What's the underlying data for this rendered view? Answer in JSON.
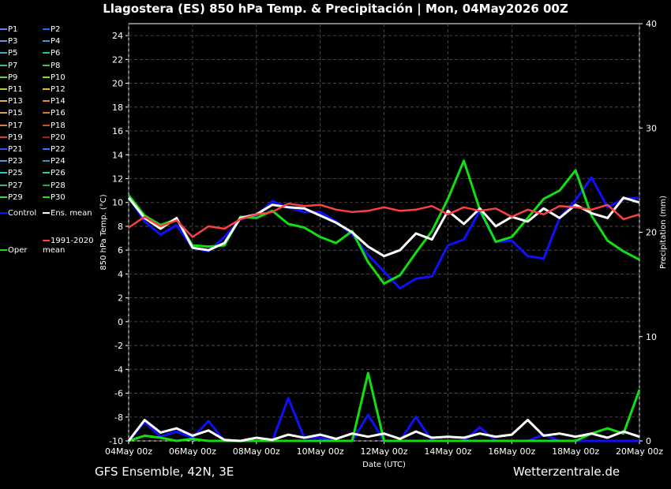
{
  "title": "Llagostera  (ES)  850 hPa Temp. & Precipitación | Mon, 04May2026 00Z",
  "footer_left": "GFS Ensemble, 42N, 3E",
  "footer_right": "Wetterzentrale.de",
  "chart_data": {
    "type": "line",
    "xlabel": "Date (UTC)",
    "ylabel": "850 hPa Temp. (°C)",
    "y2label": "Precipitation (mm)",
    "x_ticks": [
      "04May 00z",
      "06May 00z",
      "08May 00z",
      "10May 00z",
      "12May 00z",
      "14May 00z",
      "16May 00z",
      "18May 00z",
      "20May 00z"
    ],
    "xlim_hours": [
      0,
      384
    ],
    "ylim": [
      -10,
      25
    ],
    "y_ticks": [
      -10,
      -8,
      -6,
      -4,
      -2,
      0,
      2,
      4,
      6,
      8,
      10,
      12,
      14,
      16,
      18,
      20,
      22,
      24
    ],
    "y2lim": [
      0,
      40
    ],
    "y2_ticks": [
      0,
      10,
      20,
      30,
      40
    ],
    "grid": true,
    "legend_position": "left",
    "legend": [
      {
        "label": "P1",
        "color": "#5b7cff"
      },
      {
        "label": "P2",
        "color": "#2266ff"
      },
      {
        "label": "P3",
        "color": "#6f8fd8"
      },
      {
        "label": "P4",
        "color": "#3aa0d0"
      },
      {
        "label": "P5",
        "color": "#30b0c8"
      },
      {
        "label": "P6",
        "color": "#20c0a0"
      },
      {
        "label": "P7",
        "color": "#30c090"
      },
      {
        "label": "P8",
        "color": "#40c060"
      },
      {
        "label": "P9",
        "color": "#60d040"
      },
      {
        "label": "P10",
        "color": "#88d820"
      },
      {
        "label": "P11",
        "color": "#b8d030"
      },
      {
        "label": "P12",
        "color": "#d8c030"
      },
      {
        "label": "P13",
        "color": "#e0b040"
      },
      {
        "label": "P14",
        "color": "#e09030"
      },
      {
        "label": "P15",
        "color": "#d8a060"
      },
      {
        "label": "P16",
        "color": "#c08040"
      },
      {
        "label": "P17",
        "color": "#e07850"
      },
      {
        "label": "P18",
        "color": "#c85030"
      },
      {
        "label": "P19",
        "color": "#d04040"
      },
      {
        "label": "P20",
        "color": "#a02020"
      },
      {
        "label": "P21",
        "color": "#3050ff"
      },
      {
        "label": "P22",
        "color": "#2a80ff"
      },
      {
        "label": "P23",
        "color": "#4a9ae0"
      },
      {
        "label": "P24",
        "color": "#2a9ec0"
      },
      {
        "label": "P25",
        "color": "#28c8c8"
      },
      {
        "label": "P26",
        "color": "#30c8a0"
      },
      {
        "label": "P27",
        "color": "#38b878"
      },
      {
        "label": "P28",
        "color": "#28a848"
      },
      {
        "label": "P29",
        "color": "#40d840"
      },
      {
        "label": "P30",
        "color": "#20e020"
      },
      {
        "label": "Control",
        "color": "#1010ff"
      },
      {
        "label": "Ens. mean",
        "color": "#ffffff"
      },
      {
        "label": "Oper",
        "color": "#10e010"
      },
      {
        "label": "1991-2020\nmean",
        "color": "#ff4040"
      }
    ],
    "series": [
      {
        "name": "Control",
        "color": "#1010ff",
        "x": [
          0,
          12,
          24,
          36,
          48,
          60,
          72,
          84,
          96,
          108,
          120,
          132,
          144,
          156,
          168,
          180,
          192,
          204,
          216,
          228,
          240,
          252,
          264,
          276,
          288,
          300,
          312,
          324,
          336,
          348,
          360,
          372,
          384
        ],
        "values": [
          10.5,
          8.4,
          7.3,
          8.1,
          6.2,
          5.9,
          7.1,
          8.6,
          8.9,
          10.1,
          9.6,
          9.2,
          9.2,
          8.4,
          7.3,
          5.6,
          4.2,
          2.8,
          3.6,
          3.8,
          6.4,
          6.9,
          9.3,
          6.7,
          6.8,
          5.5,
          5.3,
          8.7,
          10.2,
          12.1,
          9.6,
          10.3,
          10.4
        ]
      },
      {
        "name": "Oper",
        "color": "#10e010",
        "x": [
          0,
          12,
          24,
          36,
          48,
          60,
          72,
          84,
          96,
          108,
          120,
          132,
          144,
          156,
          168,
          180,
          192,
          204,
          216,
          228,
          240,
          252,
          264,
          276,
          288,
          300,
          312,
          324,
          336,
          348,
          360,
          372,
          384
        ],
        "values": [
          10.6,
          8.9,
          8.1,
          8.6,
          6.4,
          6.3,
          6.4,
          8.8,
          8.7,
          9.3,
          8.2,
          7.9,
          7.1,
          6.6,
          7.6,
          5.0,
          3.2,
          3.9,
          5.8,
          7.6,
          10.3,
          13.5,
          9.4,
          6.7,
          7.1,
          8.7,
          10.3,
          11.0,
          12.7,
          8.9,
          6.8,
          5.9,
          5.2
        ]
      },
      {
        "name": "Ens. mean",
        "color": "#ffffff",
        "x": [
          0,
          12,
          24,
          36,
          48,
          60,
          72,
          84,
          96,
          108,
          120,
          132,
          144,
          156,
          168,
          180,
          192,
          204,
          216,
          228,
          240,
          252,
          264,
          276,
          288,
          300,
          312,
          324,
          336,
          348,
          360,
          372,
          384
        ],
        "values": [
          10.4,
          8.7,
          7.8,
          8.7,
          6.2,
          6.0,
          6.6,
          8.7,
          9.0,
          9.8,
          9.6,
          9.5,
          8.9,
          8.3,
          7.5,
          6.3,
          5.5,
          6.0,
          7.4,
          6.9,
          9.3,
          8.2,
          9.5,
          8.0,
          8.8,
          8.4,
          9.5,
          8.7,
          9.8,
          9.1,
          8.7,
          10.4,
          10.0
        ]
      },
      {
        "name": "1991-2020\nmean",
        "color": "#ff4040",
        "x": [
          0,
          12,
          24,
          36,
          48,
          60,
          72,
          84,
          96,
          108,
          120,
          132,
          144,
          156,
          168,
          180,
          192,
          204,
          216,
          228,
          240,
          252,
          264,
          276,
          288,
          300,
          312,
          324,
          336,
          348,
          360,
          372,
          384
        ],
        "values": [
          7.9,
          8.8,
          8.0,
          8.5,
          7.1,
          8.0,
          7.8,
          8.6,
          9.0,
          9.2,
          9.9,
          9.7,
          9.8,
          9.4,
          9.2,
          9.3,
          9.6,
          9.3,
          9.4,
          9.7,
          9.0,
          9.6,
          9.3,
          9.5,
          8.8,
          9.4,
          9.0,
          9.7,
          9.6,
          9.4,
          9.8,
          8.6,
          9.0
        ]
      }
    ],
    "precip_series": [
      {
        "name": "Control",
        "color": "#1010ff",
        "x": [
          0,
          12,
          24,
          36,
          48,
          60,
          72,
          84,
          96,
          108,
          120,
          132,
          144,
          156,
          168,
          180,
          192,
          204,
          216,
          228,
          240,
          252,
          264,
          276,
          288,
          300,
          312,
          324,
          336,
          348,
          360,
          372,
          384
        ],
        "values": [
          0,
          1.8,
          0.4,
          0.9,
          0.3,
          1.9,
          0,
          0,
          0,
          0,
          4.1,
          0.3,
          0.3,
          0,
          0,
          2.5,
          0,
          0,
          2.3,
          0,
          0,
          0,
          1.3,
          0,
          0,
          0,
          0.6,
          0,
          0,
          0,
          0,
          0,
          0
        ]
      },
      {
        "name": "Oper",
        "color": "#10e010",
        "x": [
          0,
          12,
          24,
          36,
          48,
          60,
          72,
          84,
          96,
          108,
          120,
          132,
          144,
          156,
          168,
          180,
          192,
          204,
          216,
          228,
          240,
          252,
          264,
          276,
          288,
          300,
          312,
          324,
          336,
          348,
          360,
          372,
          384
        ],
        "values": [
          0,
          0.5,
          0.3,
          0,
          0.2,
          0,
          0,
          0,
          0,
          0,
          0,
          0,
          0,
          0,
          0,
          6.5,
          0,
          0,
          0,
          0,
          0,
          0,
          0,
          0,
          0,
          0,
          0,
          0,
          0,
          0.7,
          1.2,
          0.7,
          4.9
        ]
      },
      {
        "name": "Ens. mean",
        "color": "#ffffff",
        "x": [
          0,
          12,
          24,
          36,
          48,
          60,
          72,
          84,
          96,
          108,
          120,
          132,
          144,
          156,
          168,
          180,
          192,
          204,
          216,
          228,
          240,
          252,
          264,
          276,
          288,
          300,
          312,
          324,
          336,
          348,
          360,
          372,
          384
        ],
        "values": [
          0,
          2.0,
          0.8,
          1.2,
          0.5,
          1.0,
          0.1,
          0,
          0.3,
          0.1,
          0.6,
          0.3,
          0.6,
          0.2,
          0.7,
          0.4,
          0.7,
          0.2,
          0.9,
          0.3,
          0.4,
          0.3,
          0.7,
          0.4,
          0.6,
          2.0,
          0.5,
          0.7,
          0.4,
          0.7,
          0.3,
          0.9,
          0.4
        ]
      }
    ]
  }
}
